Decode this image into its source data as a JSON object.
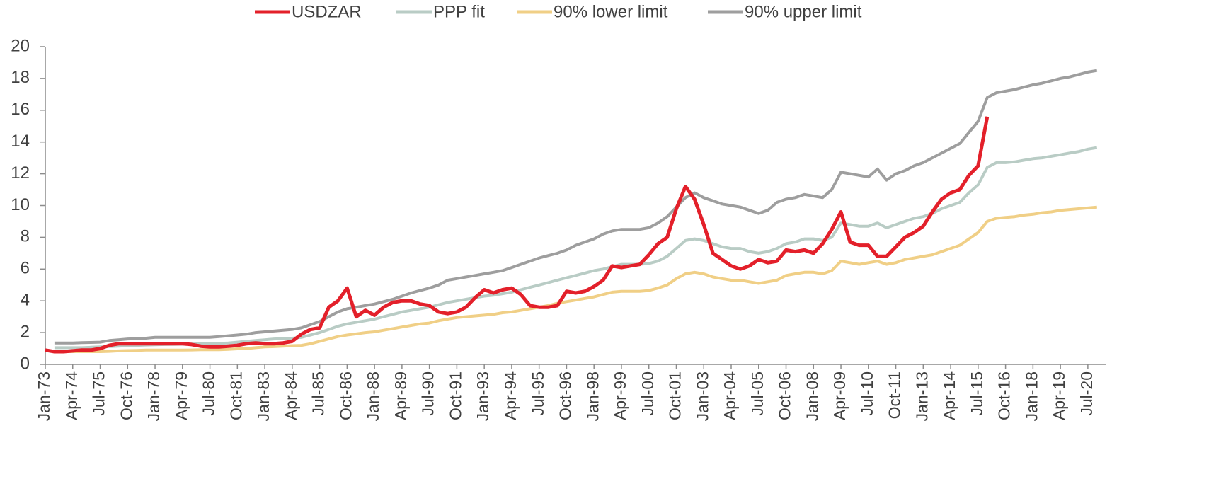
{
  "chart_data": {
    "type": "line",
    "categories": [
      "Jan-73",
      null,
      null,
      "Apr-74",
      null,
      null,
      "Jul-75",
      null,
      null,
      "Oct-76",
      null,
      null,
      "Jan-78",
      null,
      null,
      "Apr-79",
      null,
      null,
      "Jul-80",
      null,
      null,
      "Oct-81",
      null,
      null,
      "Jan-83",
      null,
      null,
      "Apr-84",
      null,
      null,
      "Jul-85",
      null,
      null,
      "Oct-86",
      null,
      null,
      "Jan-88",
      null,
      null,
      "Apr-89",
      null,
      null,
      "Jul-90",
      null,
      null,
      "Oct-91",
      null,
      null,
      "Jan-93",
      null,
      null,
      "Apr-94",
      null,
      null,
      "Jul-95",
      null,
      null,
      "Oct-96",
      null,
      null,
      "Jan-98",
      null,
      null,
      "Apr-99",
      null,
      null,
      "Jul-00",
      null,
      null,
      "Oct-01",
      null,
      null,
      "Jan-03",
      null,
      null,
      "Apr-04",
      null,
      null,
      "Jul-05",
      null,
      null,
      "Oct-06",
      null,
      null,
      "Jan-08",
      null,
      null,
      "Apr-09",
      null,
      null,
      "Jul-10",
      null,
      null,
      "Oct-11",
      null,
      null,
      "Jan-13",
      null,
      null,
      "Apr-14",
      null,
      null,
      "Jul-15",
      null,
      null,
      "Oct-16",
      null,
      null,
      "Jan-18",
      null,
      null,
      "Apr-19",
      null,
      null,
      "Jul-20",
      null
    ],
    "series": [
      {
        "name": "USDZAR",
        "color": "#e3202a",
        "values": [
          0.9,
          0.8,
          0.8,
          0.85,
          0.9,
          0.9,
          1.0,
          1.2,
          1.3,
          1.3,
          1.3,
          1.3,
          1.3,
          1.3,
          1.3,
          1.3,
          1.25,
          1.15,
          1.1,
          1.1,
          1.15,
          1.2,
          1.3,
          1.35,
          1.3,
          1.3,
          1.35,
          1.45,
          1.9,
          2.2,
          2.3,
          3.6,
          4.0,
          4.8,
          3.0,
          3.4,
          3.1,
          3.6,
          3.9,
          4.0,
          4.0,
          3.8,
          3.7,
          3.3,
          3.2,
          3.3,
          3.6,
          4.2,
          4.7,
          4.5,
          4.7,
          4.8,
          4.4,
          3.7,
          3.6,
          3.6,
          3.7,
          4.6,
          4.5,
          4.6,
          4.9,
          5.3,
          6.2,
          6.1,
          6.2,
          6.3,
          6.9,
          7.6,
          8.0,
          9.8,
          11.2,
          10.4,
          8.8,
          7.0,
          6.6,
          6.2,
          6.0,
          6.2,
          6.6,
          6.4,
          6.5,
          7.2,
          7.1,
          7.2,
          7.0,
          7.6,
          8.5,
          9.6,
          7.7,
          7.5,
          7.5,
          6.8,
          6.8,
          7.4,
          8.0,
          8.3,
          8.7,
          9.6,
          10.4,
          10.8,
          11.0,
          11.9,
          12.5,
          15.6,
          null,
          null,
          null,
          null,
          null,
          null,
          null,
          null,
          null,
          null,
          null,
          null
        ]
      },
      {
        "name": "PPP fit",
        "color": "#b9ccc5",
        "values": [
          null,
          1.05,
          1.05,
          1.05,
          1.05,
          1.08,
          1.1,
          1.12,
          1.15,
          1.18,
          1.2,
          1.22,
          1.24,
          1.25,
          1.26,
          1.27,
          1.28,
          1.3,
          1.3,
          1.32,
          1.35,
          1.4,
          1.45,
          1.5,
          1.55,
          1.6,
          1.62,
          1.65,
          1.7,
          1.85,
          2.0,
          2.2,
          2.4,
          2.55,
          2.65,
          2.75,
          2.85,
          3.0,
          3.15,
          3.3,
          3.4,
          3.5,
          3.6,
          3.75,
          3.9,
          4.0,
          4.1,
          4.2,
          4.3,
          4.35,
          4.45,
          4.55,
          4.7,
          4.85,
          5.0,
          5.15,
          5.3,
          5.45,
          5.6,
          5.75,
          5.9,
          6.0,
          6.15,
          6.3,
          6.3,
          6.3,
          6.35,
          6.5,
          6.8,
          7.3,
          7.8,
          7.9,
          7.8,
          7.6,
          7.4,
          7.3,
          7.3,
          7.1,
          7.0,
          7.1,
          7.3,
          7.6,
          7.7,
          7.9,
          7.9,
          7.8,
          8.0,
          8.9,
          8.8,
          8.7,
          8.7,
          8.9,
          8.6,
          8.8,
          9.0,
          9.2,
          9.3,
          9.5,
          9.8,
          10.0,
          10.2,
          10.8,
          11.3,
          12.4,
          12.7,
          12.7,
          12.75,
          12.85,
          12.95,
          13.0,
          13.1,
          13.2,
          13.3,
          13.4,
          13.55,
          13.65
        ]
      },
      {
        "name": "90% lower limit",
        "color": "#f0cf86",
        "values": [
          null,
          0.8,
          0.8,
          0.8,
          0.8,
          0.8,
          0.8,
          0.82,
          0.85,
          0.87,
          0.88,
          0.9,
          0.9,
          0.9,
          0.9,
          0.9,
          0.91,
          0.92,
          0.92,
          0.92,
          0.95,
          0.98,
          1.0,
          1.05,
          1.1,
          1.12,
          1.15,
          1.18,
          1.2,
          1.3,
          1.45,
          1.6,
          1.75,
          1.85,
          1.92,
          2.0,
          2.05,
          2.15,
          2.25,
          2.35,
          2.45,
          2.55,
          2.6,
          2.75,
          2.85,
          2.95,
          3.0,
          3.05,
          3.1,
          3.15,
          3.25,
          3.3,
          3.4,
          3.5,
          3.6,
          3.7,
          3.85,
          3.95,
          4.05,
          4.15,
          4.25,
          4.4,
          4.55,
          4.6,
          4.6,
          4.6,
          4.65,
          4.8,
          5.0,
          5.4,
          5.7,
          5.8,
          5.7,
          5.5,
          5.4,
          5.3,
          5.3,
          5.2,
          5.1,
          5.2,
          5.3,
          5.6,
          5.7,
          5.8,
          5.8,
          5.7,
          5.9,
          6.5,
          6.4,
          6.3,
          6.4,
          6.5,
          6.3,
          6.4,
          6.6,
          6.7,
          6.8,
          6.9,
          7.1,
          7.3,
          7.5,
          7.9,
          8.3,
          9.0,
          9.2,
          9.25,
          9.3,
          9.4,
          9.45,
          9.55,
          9.6,
          9.7,
          9.75,
          9.8,
          9.85,
          9.9
        ]
      },
      {
        "name": "90% upper limit",
        "color": "#9e9e9e",
        "values": [
          null,
          1.35,
          1.35,
          1.35,
          1.37,
          1.38,
          1.4,
          1.5,
          1.55,
          1.6,
          1.62,
          1.65,
          1.7,
          1.7,
          1.7,
          1.7,
          1.7,
          1.7,
          1.7,
          1.75,
          1.8,
          1.85,
          1.9,
          2.0,
          2.05,
          2.1,
          2.15,
          2.2,
          2.3,
          2.5,
          2.7,
          3.0,
          3.3,
          3.5,
          3.6,
          3.7,
          3.8,
          3.95,
          4.1,
          4.3,
          4.5,
          4.65,
          4.8,
          5.0,
          5.3,
          5.4,
          5.5,
          5.6,
          5.7,
          5.8,
          5.9,
          6.1,
          6.3,
          6.5,
          6.7,
          6.85,
          7.0,
          7.2,
          7.5,
          7.7,
          7.9,
          8.2,
          8.4,
          8.5,
          8.5,
          8.5,
          8.6,
          8.9,
          9.3,
          9.9,
          10.5,
          10.8,
          10.5,
          10.3,
          10.1,
          10.0,
          9.9,
          9.7,
          9.5,
          9.7,
          10.2,
          10.4,
          10.5,
          10.7,
          10.6,
          10.5,
          11.0,
          12.1,
          12.0,
          11.9,
          11.8,
          12.3,
          11.6,
          12.0,
          12.2,
          12.5,
          12.7,
          13.0,
          13.3,
          13.6,
          13.9,
          14.6,
          15.3,
          16.8,
          17.1,
          17.2,
          17.3,
          17.45,
          17.6,
          17.7,
          17.85,
          18.0,
          18.1,
          18.25,
          18.4,
          18.5
        ]
      }
    ],
    "ylim": [
      0,
      20
    ],
    "yticks": [
      0,
      2,
      4,
      6,
      8,
      10,
      12,
      14,
      16,
      18,
      20
    ],
    "grid": false,
    "legend": "top"
  }
}
